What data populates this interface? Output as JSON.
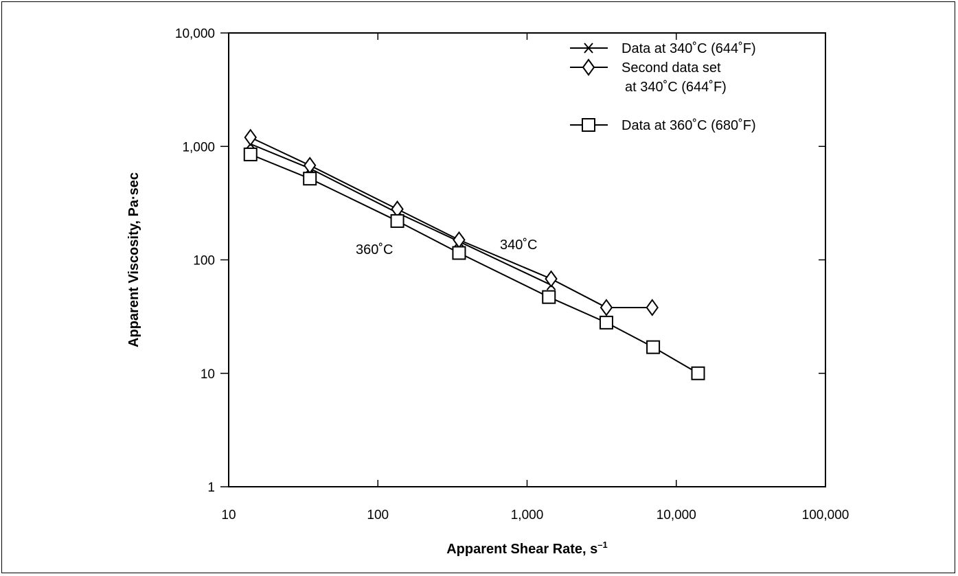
{
  "chart_data": {
    "type": "line",
    "title": "",
    "xlabel": "Apparent Shear Rate, s",
    "xlabel_superscript": "–1",
    "ylabel": "Apparent Viscosity, Pa·sec",
    "x_scale": "log",
    "y_scale": "log",
    "xlim": [
      10,
      100000
    ],
    "ylim": [
      1,
      10000
    ],
    "x_ticks": [
      {
        "value": 10,
        "label": "10"
      },
      {
        "value": 100,
        "label": "100"
      },
      {
        "value": 1000,
        "label": "1,000"
      },
      {
        "value": 10000,
        "label": "10,000"
      },
      {
        "value": 100000,
        "label": "100,000"
      }
    ],
    "y_ticks": [
      {
        "value": 1,
        "label": "1"
      },
      {
        "value": 10,
        "label": "10"
      },
      {
        "value": 100,
        "label": "100"
      },
      {
        "value": 1000,
        "label": "1,000"
      },
      {
        "value": 10000,
        "label": "10,000"
      }
    ],
    "grid": false,
    "legend_position": "top-right",
    "series": [
      {
        "name": "Data at 340˚C (644˚F)",
        "marker": "x",
        "points": [
          [
            14,
            1050
          ],
          [
            35,
            640
          ],
          [
            135,
            260
          ],
          [
            350,
            145
          ],
          [
            1450,
            60
          ]
        ]
      },
      {
        "name": "Second data set at 340˚C (644˚F)",
        "legend_lines": [
          "Second data set",
          "at 340˚C (644˚F)"
        ],
        "marker": "diamond",
        "points": [
          [
            14,
            1200
          ],
          [
            35,
            680
          ],
          [
            135,
            280
          ],
          [
            350,
            150
          ],
          [
            1450,
            68
          ],
          [
            3400,
            38
          ],
          [
            6900,
            38
          ]
        ]
      },
      {
        "name": "Data at 360˚C (680˚F)",
        "marker": "square",
        "points": [
          [
            14,
            850
          ],
          [
            35,
            520
          ],
          [
            135,
            220
          ],
          [
            350,
            115
          ],
          [
            1400,
            47
          ],
          [
            3400,
            28
          ],
          [
            7000,
            17
          ],
          [
            14000,
            10
          ]
        ]
      }
    ],
    "annotations": [
      {
        "text": "360˚C",
        "x": 150,
        "y": 105
      },
      {
        "text": "340˚C",
        "x": 1000,
        "y": 110
      }
    ]
  }
}
